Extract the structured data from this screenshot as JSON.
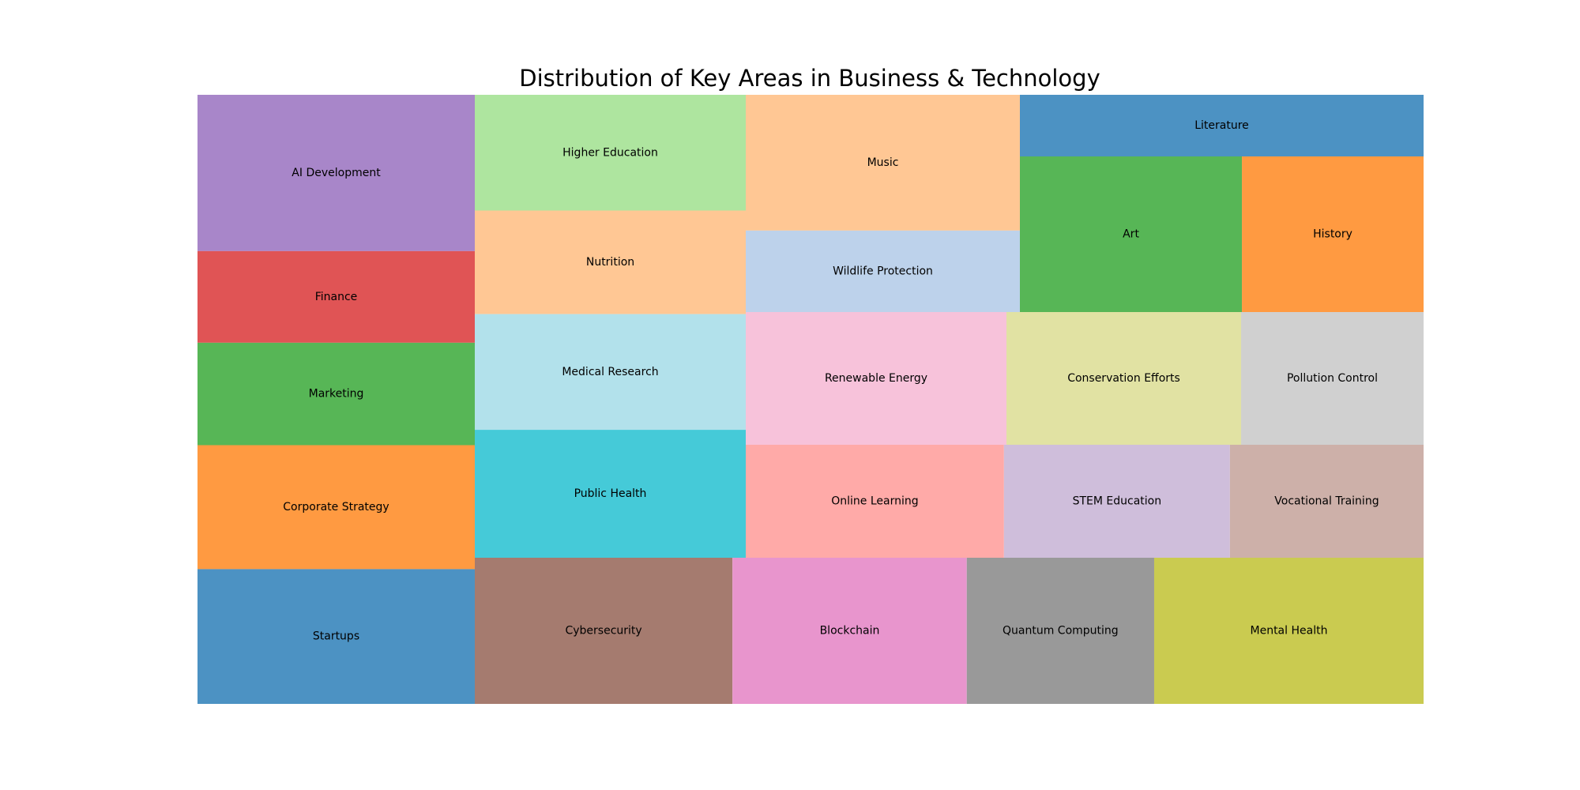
{
  "chart_data": {
    "type": "treemap",
    "title": "Distribution of Key Areas in Business & Technology",
    "label_color": "#000000",
    "columns": [
      {
        "items": [
          {
            "label": "AI Development",
            "value": 29,
            "color": "#a886c9"
          },
          {
            "label": "Finance",
            "value": 17,
            "color": "#e05455"
          },
          {
            "label": "Marketing",
            "value": 19,
            "color": "#57b656"
          },
          {
            "label": "Corporate Strategy",
            "value": 23,
            "color": "#ff9a41"
          },
          {
            "label": "Startups",
            "value": 25,
            "color": "#4c92c3"
          }
        ]
      },
      {
        "items": [
          {
            "label": "Higher Education",
            "value": 19,
            "color": "#aee59f"
          },
          {
            "label": "Nutrition",
            "value": 17,
            "color": "#ffc794"
          },
          {
            "label": "Medical Research",
            "value": 19,
            "color": "#b2e1eb"
          },
          {
            "label": "Public Health",
            "value": 21,
            "color": "#45cad8"
          }
        ]
      },
      {
        "items": [
          {
            "label": "Music",
            "value": 25,
            "color": "#ffc794"
          },
          {
            "label": "Wildlife Protection",
            "value": 15,
            "color": "#bdd2eb"
          }
        ]
      },
      {
        "items": [
          {
            "label": "Literature",
            "value": 16,
            "color": "#4c92c3"
          }
        ]
      },
      {
        "items": [
          {
            "label": "Art",
            "value": 22,
            "color": "#57b656"
          },
          {
            "label": "History",
            "value": 18,
            "color": "#ff9a41"
          }
        ]
      }
    ],
    "rows": [
      {
        "items": [
          {
            "label": "Renewable Energy",
            "value": 20,
            "color": "#f7c2da"
          },
          {
            "label": "Conservation Efforts",
            "value": 18,
            "color": "#e1e2a3"
          },
          {
            "label": "Pollution Control",
            "value": 14,
            "color": "#d0d0d0"
          }
        ]
      },
      {
        "items": [
          {
            "label": "Online Learning",
            "value": 16,
            "color": "#ffaaa8"
          },
          {
            "label": "STEM Education",
            "value": 14,
            "color": "#cfbedb"
          },
          {
            "label": "Vocational Training",
            "value": 12,
            "color": "#cdb0a9"
          }
        ]
      },
      {
        "items": [
          {
            "label": "Cybersecurity",
            "value": 22,
            "color": "#a57b6f"
          },
          {
            "label": "Blockchain",
            "value": 20,
            "color": "#e895cd"
          },
          {
            "label": "Quantum Computing",
            "value": 16,
            "color": "#999999"
          },
          {
            "label": "Mental Health",
            "value": 23,
            "color": "#cacb50"
          }
        ]
      }
    ]
  }
}
